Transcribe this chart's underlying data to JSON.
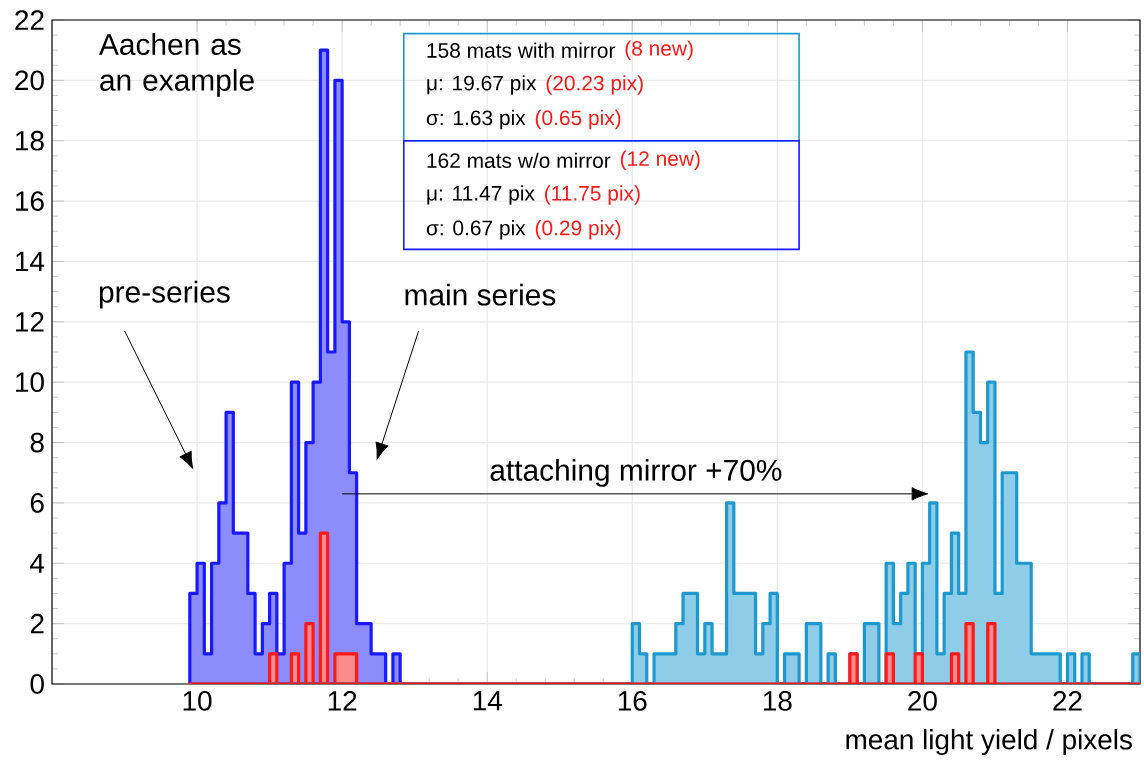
{
  "chart_data": {
    "type": "histogram",
    "xlabel": "mean light yield / pixels",
    "xlim": [
      8,
      23
    ],
    "ylim": [
      0,
      22
    ],
    "xticks": [
      10,
      12,
      14,
      16,
      18,
      20,
      22
    ],
    "yticks": [
      0,
      2,
      4,
      6,
      8,
      10,
      12,
      14,
      16,
      18,
      20,
      22
    ],
    "grid": true,
    "bins": [
      9.9,
      10.0,
      10.1,
      10.2,
      10.3,
      10.4,
      10.5,
      10.6,
      10.7,
      10.8,
      10.9,
      11.0,
      11.1,
      11.2,
      11.3,
      11.4,
      11.5,
      11.6,
      11.7,
      11.8,
      11.9,
      12.0,
      12.1,
      12.2,
      12.3,
      12.4,
      12.5,
      12.6,
      12.7,
      12.8,
      12.9,
      13.0,
      13.1,
      13.2,
      13.3,
      13.4,
      13.5,
      13.6,
      13.7,
      13.8,
      13.9,
      14.0,
      14.1,
      14.2,
      14.3,
      14.4,
      14.5,
      14.6,
      14.7,
      14.8,
      14.9,
      15.0,
      15.1,
      15.2,
      15.3,
      15.4,
      15.5,
      15.6,
      15.7,
      15.8,
      15.9,
      16.0,
      16.1,
      16.2,
      16.3,
      16.4,
      16.5,
      16.6,
      16.7,
      16.8,
      16.9,
      17.0,
      17.1,
      17.2,
      17.3,
      17.4,
      17.5,
      17.6,
      17.7,
      17.8,
      17.9,
      18.0,
      18.1,
      18.2,
      18.3,
      18.4,
      18.5,
      18.6,
      18.7,
      18.8,
      18.9,
      19.0,
      19.1,
      19.2,
      19.3,
      19.4,
      19.5,
      19.6,
      19.7,
      19.8,
      19.9,
      20.0,
      20.1,
      20.2,
      20.3,
      20.4,
      20.5,
      20.6,
      20.7,
      20.8,
      20.9,
      21.0,
      21.1,
      21.2,
      21.3,
      21.4,
      21.5,
      21.6,
      21.7,
      21.8,
      21.9,
      22.0,
      22.1,
      22.2,
      22.3,
      22.4,
      22.5,
      22.6,
      22.7,
      22.8,
      22.9,
      23.0
    ],
    "series": [
      {
        "color": "#8c8cff",
        "values": [
          3,
          4,
          1,
          4,
          6,
          9,
          5,
          5,
          3,
          1,
          2,
          3,
          1,
          4,
          10,
          5,
          8,
          10,
          21,
          11,
          20,
          12,
          7,
          2,
          2,
          1,
          1,
          0,
          1,
          0,
          0,
          0,
          0,
          0,
          0,
          0,
          0,
          0,
          0,
          0,
          0,
          0,
          0,
          0,
          0,
          0,
          0,
          0,
          0,
          0,
          0,
          0,
          0,
          0,
          0,
          0,
          0,
          0,
          0,
          0,
          0,
          0,
          0,
          0,
          0,
          0,
          0,
          0,
          0,
          0,
          0,
          0,
          0,
          0,
          0,
          0,
          0,
          0,
          0,
          0,
          0,
          0,
          0,
          0,
          0,
          0,
          0,
          0,
          0,
          0,
          0,
          0,
          0,
          0,
          0,
          0,
          0,
          0,
          0,
          0,
          0,
          0,
          0,
          0,
          0,
          0,
          0,
          0,
          0,
          0,
          0,
          0,
          0,
          0,
          0,
          0,
          0,
          0,
          0,
          0,
          0,
          0,
          0,
          0,
          0,
          0,
          0,
          0,
          0,
          0,
          0
        ]
      },
      {
        "color": "#ff8c8c",
        "values": [
          0,
          0,
          0,
          0,
          0,
          0,
          0,
          0,
          0,
          0,
          0,
          1,
          0,
          0,
          1,
          0,
          2,
          0,
          5,
          0,
          1,
          1,
          1,
          0,
          0,
          0,
          0,
          0,
          0,
          0,
          0,
          0,
          0,
          0,
          0,
          0,
          0,
          0,
          0,
          0,
          0,
          0,
          0,
          0,
          0,
          0,
          0,
          0,
          0,
          0,
          0,
          0,
          0,
          0,
          0,
          0,
          0,
          0,
          0,
          0,
          0,
          0,
          0,
          0,
          0,
          0,
          0,
          0,
          0,
          0,
          0,
          0,
          0,
          0,
          0,
          0,
          0,
          0,
          0,
          0,
          0,
          0,
          0,
          0,
          0,
          0,
          0,
          0,
          0,
          0,
          0,
          0,
          0,
          0,
          0,
          0,
          0,
          0,
          0,
          0,
          0,
          0,
          0,
          0,
          0,
          0,
          0,
          0,
          0,
          0,
          0,
          0,
          0,
          0,
          0,
          0,
          0,
          0,
          0,
          0,
          0,
          0,
          0,
          0,
          0,
          0,
          0,
          0,
          0,
          0,
          0
        ]
      },
      {
        "color": "#8ecce7",
        "values": [
          0,
          0,
          0,
          0,
          0,
          0,
          0,
          0,
          0,
          0,
          0,
          0,
          0,
          0,
          0,
          0,
          0,
          0,
          0,
          0,
          0,
          0,
          0,
          0,
          0,
          0,
          0,
          0,
          0,
          0,
          0,
          0,
          0,
          0,
          0,
          0,
          0,
          0,
          0,
          0,
          0,
          0,
          0,
          0,
          0,
          0,
          0,
          0,
          0,
          0,
          0,
          0,
          0,
          0,
          0,
          0,
          0,
          0,
          0,
          0,
          0,
          2,
          1,
          0,
          1,
          1,
          1,
          2,
          3,
          3,
          1,
          2,
          1,
          1,
          6,
          3,
          3,
          3,
          1,
          2,
          3,
          0,
          1,
          1,
          0,
          2,
          2,
          0,
          1,
          0,
          0,
          1,
          0,
          2,
          2,
          0,
          4,
          2,
          3,
          4,
          1,
          4,
          6,
          1,
          3,
          5,
          3,
          11,
          9,
          8,
          10,
          3,
          7,
          7,
          4,
          4,
          1,
          1,
          1,
          1,
          0,
          1,
          0,
          1,
          0,
          0,
          0,
          0,
          0,
          0,
          1
        ]
      },
      {
        "color": "#ff8c8c",
        "values": [
          0,
          0,
          0,
          0,
          0,
          0,
          0,
          0,
          0,
          0,
          0,
          0,
          0,
          0,
          0,
          0,
          0,
          0,
          0,
          0,
          0,
          0,
          0,
          0,
          0,
          0,
          0,
          0,
          0,
          0,
          0,
          0,
          0,
          0,
          0,
          0,
          0,
          0,
          0,
          0,
          0,
          0,
          0,
          0,
          0,
          0,
          0,
          0,
          0,
          0,
          0,
          0,
          0,
          0,
          0,
          0,
          0,
          0,
          0,
          0,
          0,
          0,
          0,
          0,
          0,
          0,
          0,
          0,
          0,
          0,
          0,
          0,
          0,
          0,
          0,
          0,
          0,
          0,
          0,
          0,
          0,
          0,
          0,
          0,
          0,
          0,
          0,
          0,
          0,
          0,
          0,
          1,
          0,
          0,
          0,
          0,
          1,
          0,
          0,
          0,
          1,
          0,
          0,
          0,
          0,
          1,
          0,
          2,
          0,
          0,
          2,
          0,
          0,
          0,
          0,
          0,
          0,
          0,
          0,
          0,
          0,
          0,
          0,
          0,
          0,
          0,
          0,
          0,
          0,
          0,
          0
        ]
      }
    ],
    "annotations": [
      "Aachen as an example",
      "pre-series",
      "main series",
      "attaching mirror +70%",
      "158 mats with mirror",
      "(8 new)",
      "μ: 19.67 pix",
      "(20.23 pix)",
      "σ: 1.63 pix",
      "(0.65 pix)",
      "162 mats w/o mirror",
      "(12 new)",
      "μ: 11.47 pix",
      "(11.75 pix)",
      "σ: 0.67 pix",
      "(0.29 pix)"
    ]
  }
}
